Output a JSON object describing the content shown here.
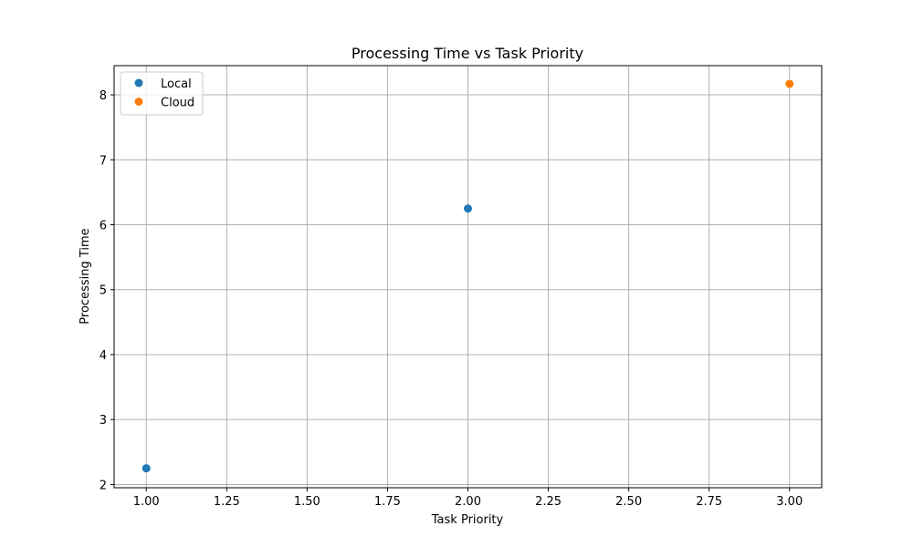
{
  "chart_data": {
    "type": "scatter",
    "title": "Processing Time vs Task Priority",
    "xlabel": "Task Priority",
    "ylabel": "Processing Time",
    "xlim": [
      0.9,
      3.1
    ],
    "ylim": [
      1.95,
      8.45
    ],
    "xticks": [
      1.0,
      1.25,
      1.5,
      1.75,
      2.0,
      2.25,
      2.5,
      2.75,
      3.0
    ],
    "xtick_labels": [
      "1.00",
      "1.25",
      "1.50",
      "1.75",
      "2.00",
      "2.25",
      "2.50",
      "2.75",
      "3.00"
    ],
    "yticks": [
      2,
      3,
      4,
      5,
      6,
      7,
      8
    ],
    "ytick_labels": [
      "2",
      "3",
      "4",
      "5",
      "6",
      "7",
      "8"
    ],
    "grid": true,
    "legend_position": "top-left",
    "series": [
      {
        "name": "Local",
        "color": "#1f77b4",
        "points": [
          {
            "x": 1.0,
            "y": 2.25
          },
          {
            "x": 2.0,
            "y": 6.25
          }
        ]
      },
      {
        "name": "Cloud",
        "color": "#ff7f0e",
        "points": [
          {
            "x": 3.0,
            "y": 8.17
          }
        ]
      }
    ]
  }
}
